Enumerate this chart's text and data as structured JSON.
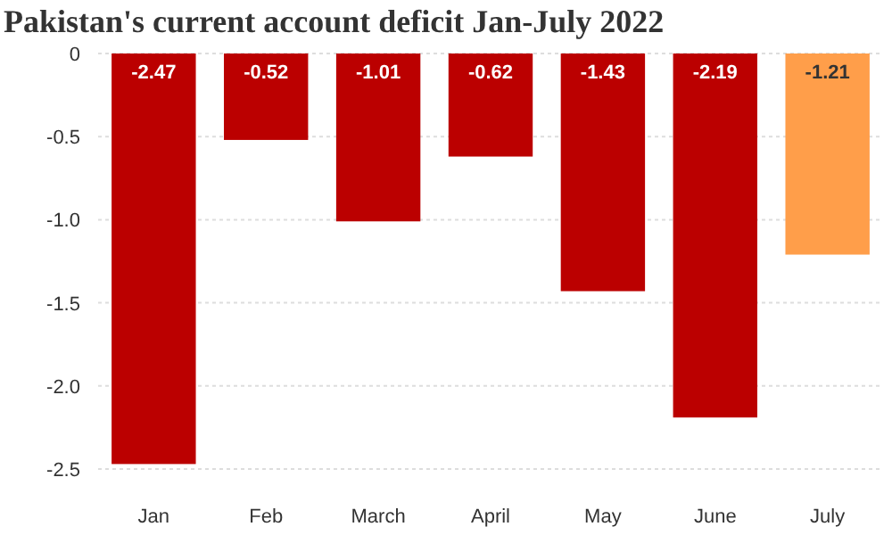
{
  "chart_data": {
    "type": "bar",
    "title": "Pakistan's current account deficit Jan-July 2022",
    "categories": [
      "Jan",
      "Feb",
      "March",
      "April",
      "May",
      "June",
      "July"
    ],
    "values": [
      -2.47,
      -0.52,
      -1.01,
      -0.62,
      -1.43,
      -2.19,
      -1.21
    ],
    "colors": [
      "#bb0000",
      "#bb0000",
      "#bb0000",
      "#bb0000",
      "#bb0000",
      "#bb0000",
      "#ff9e4a"
    ],
    "ylim": [
      -2.5,
      0
    ],
    "yticks": [
      0,
      {
        "value": -0.5,
        "label": "-0.5"
      },
      {
        "value": -1,
        "label": "-1.0"
      },
      {
        "value": -1.5,
        "label": "-1.5"
      },
      {
        "value": -2,
        "label": "-2.0"
      },
      {
        "value": -2.5,
        "label": "-2.5"
      }
    ],
    "grid": "y",
    "data_labels": true
  }
}
